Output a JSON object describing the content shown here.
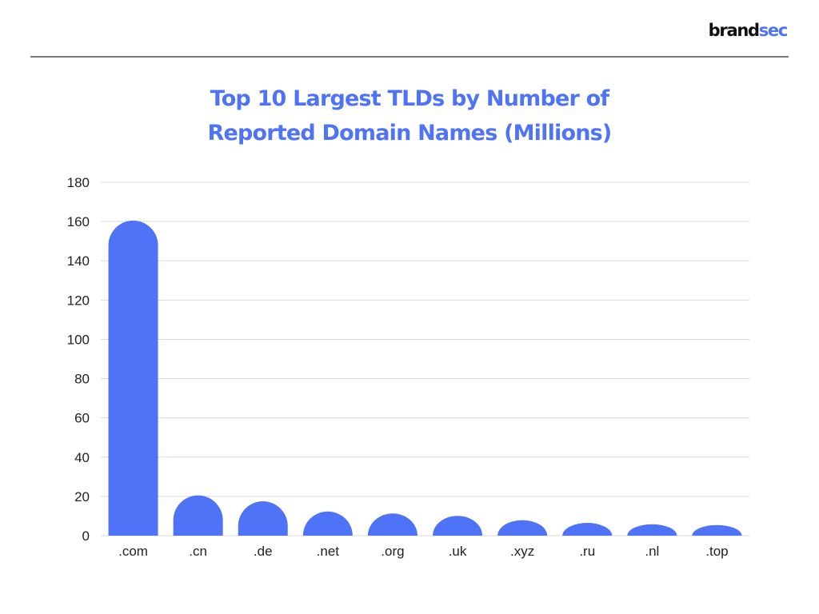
{
  "logo": {
    "part1": "brand",
    "part2": "sec"
  },
  "colors": {
    "accent": "#4f73f7",
    "grid": "#d9d9d9",
    "rule": "#7a7a7a"
  },
  "chart_data": {
    "type": "bar",
    "title_lines": [
      "Top 10 Largest TLDs by Number of",
      "Reported Domain Names (Millions)"
    ],
    "categories": [
      ".com",
      ".cn",
      ".de",
      ".net",
      ".org",
      ".uk",
      ".xyz",
      ".ru",
      ".nl",
      ".top"
    ],
    "values": [
      160.5,
      20.5,
      17.5,
      12.3,
      11.3,
      10.1,
      7.9,
      6.5,
      5.8,
      5.4
    ],
    "ylim": [
      0,
      180
    ],
    "yticks": [
      0,
      20,
      40,
      60,
      80,
      100,
      120,
      140,
      160,
      180
    ],
    "xlabel": "",
    "ylabel": "",
    "grid": true,
    "legend": "none"
  }
}
